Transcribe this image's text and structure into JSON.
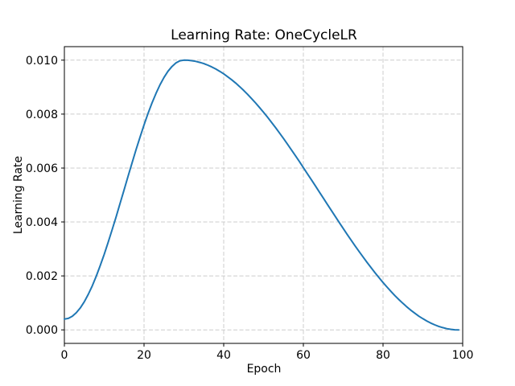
{
  "chart_data": {
    "type": "line",
    "title": "Learning Rate: OneCycleLR",
    "xlabel": "Epoch",
    "ylabel": "Learning Rate",
    "xlim": [
      0,
      100
    ],
    "ylim": [
      -0.0005,
      0.0105
    ],
    "xticks": [
      0,
      20,
      40,
      60,
      80,
      100
    ],
    "xtick_labels": [
      "0",
      "20",
      "40",
      "60",
      "80",
      "100"
    ],
    "yticks": [
      0.0,
      0.002,
      0.004,
      0.006,
      0.008,
      0.01
    ],
    "ytick_labels": [
      "0.000",
      "0.002",
      "0.004",
      "0.006",
      "0.008",
      "0.010"
    ],
    "grid": true,
    "grid_style": "dashed",
    "legend": "none",
    "line_color": "#1f77b4",
    "grid_color": "#cccccc",
    "spine_color": "#000000",
    "background_color": "#ffffff",
    "x": [
      0,
      1,
      2,
      3,
      4,
      5,
      6,
      7,
      8,
      9,
      10,
      11,
      12,
      13,
      14,
      15,
      16,
      17,
      18,
      19,
      20,
      21,
      22,
      23,
      24,
      25,
      26,
      27,
      28,
      29,
      30,
      31,
      32,
      33,
      34,
      35,
      36,
      37,
      38,
      39,
      40,
      41,
      42,
      43,
      44,
      45,
      46,
      47,
      48,
      49,
      50,
      51,
      52,
      53,
      54,
      55,
      56,
      57,
      58,
      59,
      60,
      61,
      62,
      63,
      64,
      65,
      66,
      67,
      68,
      69,
      70,
      71,
      72,
      73,
      74,
      75,
      76,
      77,
      78,
      79,
      80,
      81,
      82,
      83,
      84,
      85,
      86,
      87,
      88,
      89,
      90,
      91,
      92,
      93,
      94,
      95,
      96,
      97,
      98,
      99
    ],
    "y": [
      0.0004,
      0.000426,
      0.000505,
      0.000635,
      0.000815,
      0.001043,
      0.001317,
      0.001633,
      0.001988,
      0.002379,
      0.0028,
      0.003248,
      0.003717,
      0.004202,
      0.004698,
      0.0052,
      0.005702,
      0.006198,
      0.006683,
      0.007152,
      0.0076,
      0.008021,
      0.008412,
      0.008767,
      0.009083,
      0.009357,
      0.009585,
      0.009765,
      0.009895,
      0.009974,
      0.01,
      0.009995,
      0.009979,
      0.009953,
      0.009917,
      0.009871,
      0.009815,
      0.009748,
      0.009672,
      0.009586,
      0.009491,
      0.009386,
      0.009272,
      0.009149,
      0.009018,
      0.008878,
      0.008731,
      0.008575,
      0.008413,
      0.008243,
      0.008066,
      0.007883,
      0.007694,
      0.0075,
      0.0073,
      0.007096,
      0.006887,
      0.006674,
      0.006458,
      0.006239,
      0.006017,
      0.005793,
      0.005568,
      0.005341,
      0.005114,
      0.004886,
      0.004659,
      0.004432,
      0.004207,
      0.003983,
      0.003761,
      0.003542,
      0.003326,
      0.003113,
      0.002904,
      0.0027,
      0.0025,
      0.002306,
      0.002117,
      0.001934,
      0.001757,
      0.001587,
      0.001425,
      0.001269,
      0.001122,
      0.000982,
      0.000851,
      0.000728,
      0.000614,
      0.000509,
      0.000414,
      0.000328,
      0.000252,
      0.000185,
      0.000129,
      8.3e-05,
      4.7e-05,
      2.1e-05,
      5e-06,
      1e-06
    ],
    "series_name": "learning-rate",
    "peak": {
      "epoch": 30,
      "lr": 0.01
    },
    "start_lr": 0.0004,
    "final_lr": 1e-06
  }
}
